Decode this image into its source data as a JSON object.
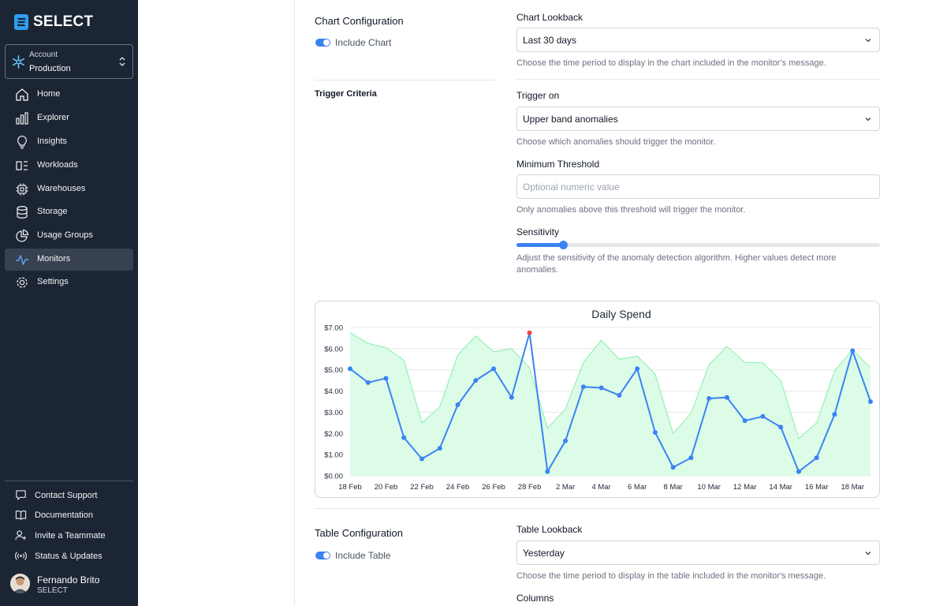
{
  "sidebar": {
    "brand": "SELECT",
    "account": {
      "label": "Account",
      "value": "Production"
    },
    "nav": [
      {
        "label": "Home",
        "icon": "home-icon"
      },
      {
        "label": "Explorer",
        "icon": "bar-chart-icon"
      },
      {
        "label": "Insights",
        "icon": "lightbulb-icon"
      },
      {
        "label": "Workloads",
        "icon": "workloads-icon"
      },
      {
        "label": "Warehouses",
        "icon": "chip-icon"
      },
      {
        "label": "Storage",
        "icon": "database-icon"
      },
      {
        "label": "Usage Groups",
        "icon": "pie-chart-icon"
      },
      {
        "label": "Monitors",
        "icon": "activity-icon",
        "active": true
      },
      {
        "label": "Settings",
        "icon": "gear-icon"
      }
    ],
    "footer": [
      {
        "label": "Contact Support",
        "icon": "chat-icon"
      },
      {
        "label": "Documentation",
        "icon": "book-icon"
      },
      {
        "label": "Invite a Teammate",
        "icon": "user-plus-icon"
      },
      {
        "label": "Status & Updates",
        "icon": "broadcast-icon"
      }
    ],
    "user": {
      "name": "Fernando Brito",
      "org": "SELECT"
    }
  },
  "chart_config": {
    "title": "Chart Configuration",
    "toggle_label": "Include Chart",
    "lookback_label": "Chart Lookback",
    "lookback_value": "Last 30 days",
    "lookback_help": "Choose the time period to display in the chart included in the monitor's message."
  },
  "trigger": {
    "title": "Trigger Criteria",
    "trigger_on_label": "Trigger on",
    "trigger_on_value": "Upper band anomalies",
    "trigger_on_help": "Choose which anomalies should trigger the monitor.",
    "threshold_label": "Minimum Threshold",
    "threshold_placeholder": "Optional numeric value",
    "threshold_help": "Only anomalies above this threshold will trigger the monitor.",
    "sensitivity_label": "Sensitivity",
    "sensitivity_value": 0.13,
    "sensitivity_help": "Adjust the sensitivity of the anomaly detection algorithm. Higher values detect more anomalies."
  },
  "table_config": {
    "title": "Table Configuration",
    "toggle_label": "Include Table",
    "lookback_label": "Table Lookback",
    "lookback_value": "Yesterday",
    "lookback_help": "Choose the time period to display in the table included in the monitor's message.",
    "columns_label": "Columns"
  },
  "chart_data": {
    "type": "line",
    "title": "Daily Spend",
    "y_ticks": [
      "$0.00",
      "$1.00",
      "$2.00",
      "$3.00",
      "$4.00",
      "$5.00",
      "$6.00",
      "$7.00"
    ],
    "ylim": [
      0,
      7
    ],
    "x_tick_labels": [
      "18 Feb",
      "20 Feb",
      "22 Feb",
      "24 Feb",
      "26 Feb",
      "28 Feb",
      "2 Mar",
      "4 Mar",
      "6 Mar",
      "8 Mar",
      "10 Mar",
      "12 Mar",
      "14 Mar",
      "16 Mar",
      "18 Mar"
    ],
    "x": [
      "18 Feb",
      "19 Feb",
      "20 Feb",
      "21 Feb",
      "22 Feb",
      "23 Feb",
      "24 Feb",
      "25 Feb",
      "26 Feb",
      "27 Feb",
      "28 Feb",
      "1 Mar",
      "2 Mar",
      "3 Mar",
      "4 Mar",
      "5 Mar",
      "6 Mar",
      "7 Mar",
      "8 Mar",
      "9 Mar",
      "10 Mar",
      "11 Mar",
      "12 Mar",
      "13 Mar",
      "14 Mar",
      "15 Mar",
      "16 Mar",
      "17 Mar",
      "18 Mar",
      "19 Mar"
    ],
    "values": [
      5.05,
      4.4,
      4.6,
      1.8,
      0.8,
      1.3,
      3.35,
      4.5,
      5.05,
      3.7,
      6.75,
      0.2,
      1.65,
      4.2,
      4.15,
      3.8,
      5.05,
      2.05,
      0.4,
      0.85,
      3.65,
      3.7,
      2.6,
      2.8,
      2.3,
      0.2,
      0.85,
      2.9,
      5.9,
      3.5
    ],
    "upper_band": [
      6.75,
      6.25,
      6.05,
      5.45,
      2.5,
      3.25,
      5.7,
      6.6,
      5.85,
      6.0,
      5.1,
      2.25,
      3.15,
      5.35,
      6.4,
      5.5,
      5.65,
      4.8,
      2.0,
      2.95,
      5.25,
      6.1,
      5.35,
      5.35,
      4.5,
      1.75,
      2.5,
      4.95,
      5.95,
      5.1
    ],
    "anomaly_indices": [
      10
    ],
    "colors": {
      "line": "#3b82f6",
      "band": "#dcfce7",
      "band_edge": "#86efac",
      "anomaly": "#ef4444"
    }
  }
}
